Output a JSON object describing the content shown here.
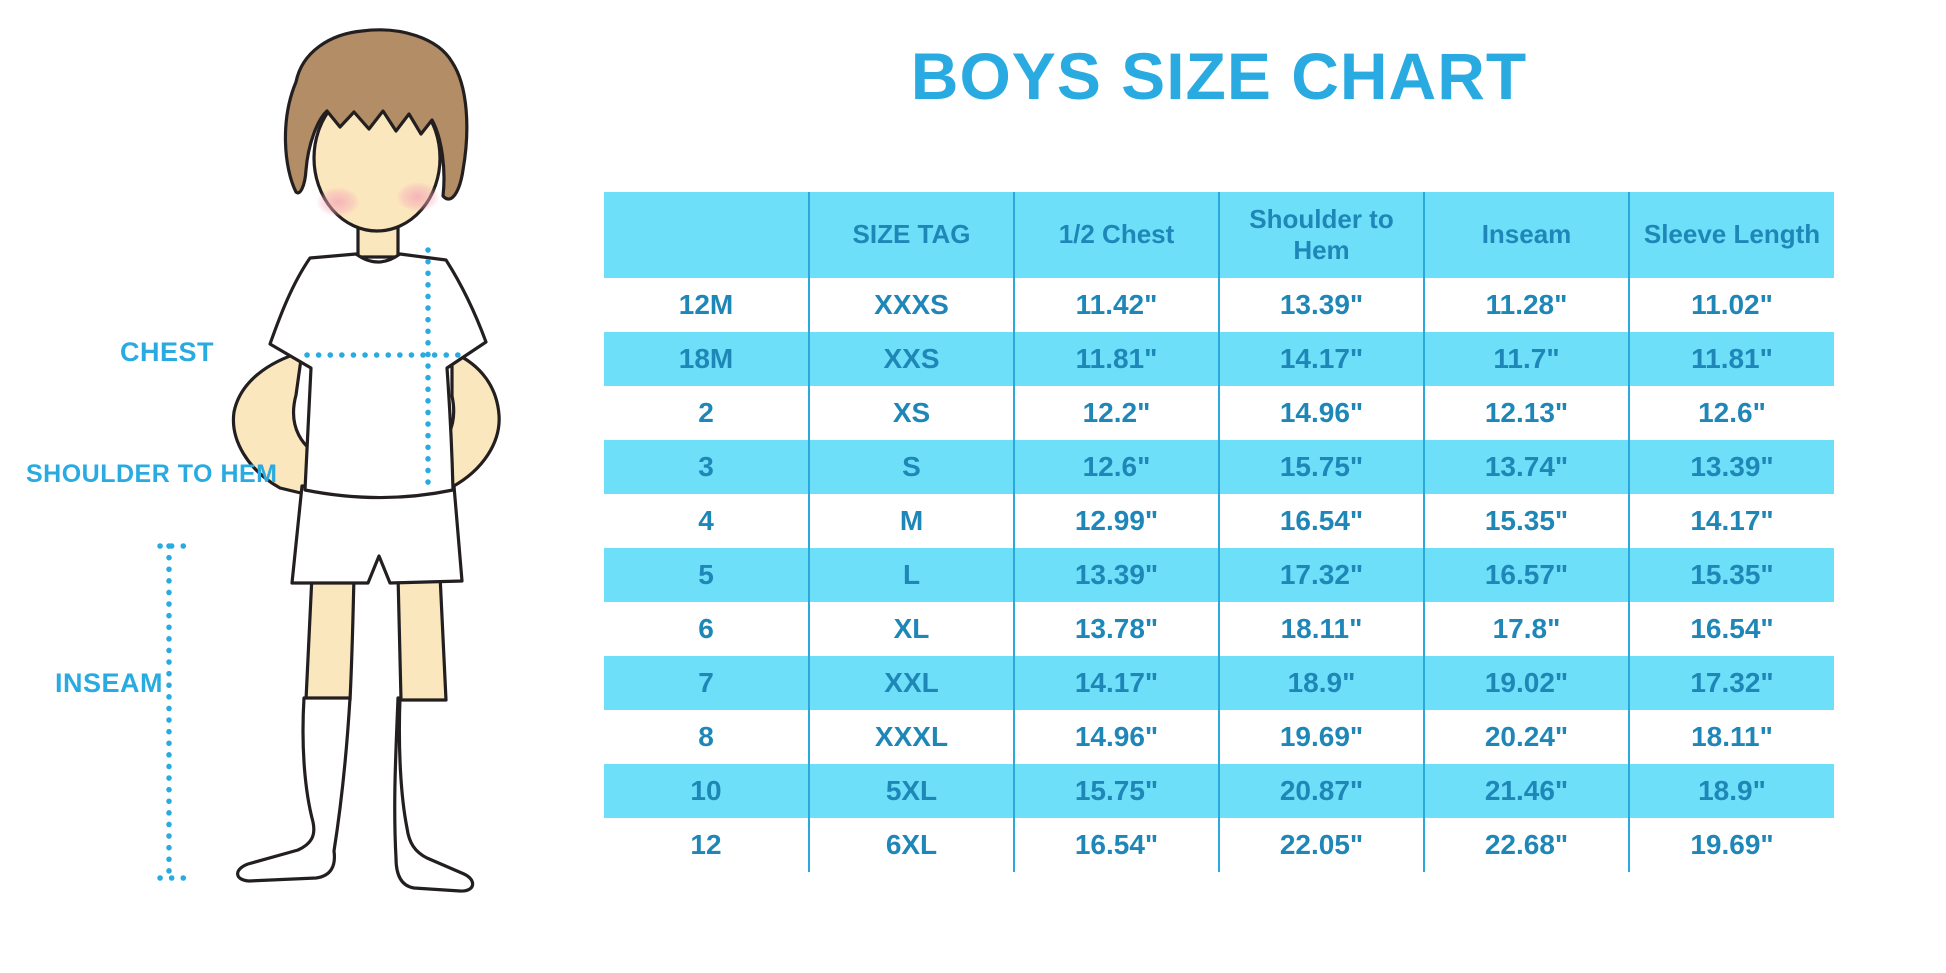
{
  "chart_data": {
    "type": "table",
    "title": "BOYS SIZE CHART",
    "units": "inches",
    "columns": [
      "",
      "SIZE TAG",
      "1/2 Chest",
      "Shoulder to Hem",
      "Inseam",
      "Sleeve Length"
    ],
    "rows": [
      [
        "12M",
        "XXXS",
        "11.42\"",
        "13.39\"",
        "11.28\"",
        "11.02\""
      ],
      [
        "18M",
        "XXS",
        "11.81\"",
        "14.17\"",
        "11.7\"",
        "11.81\""
      ],
      [
        "2",
        "XS",
        "12.2\"",
        "14.96\"",
        "12.13\"",
        "12.6\""
      ],
      [
        "3",
        "S",
        "12.6\"",
        "15.75\"",
        "13.74\"",
        "13.39\""
      ],
      [
        "4",
        "M",
        "12.99\"",
        "16.54\"",
        "15.35\"",
        "14.17\""
      ],
      [
        "5",
        "L",
        "13.39\"",
        "17.32\"",
        "16.57\"",
        "15.35\""
      ],
      [
        "6",
        "XL",
        "13.78\"",
        "18.11\"",
        "17.8\"",
        "16.54\""
      ],
      [
        "7",
        "XXL",
        "14.17\"",
        "18.9\"",
        "19.02\"",
        "17.32\""
      ],
      [
        "8",
        "XXXL",
        "14.96\"",
        "19.69\"",
        "20.24\"",
        "18.11\""
      ],
      [
        "10",
        "5XL",
        "15.75\"",
        "20.87\"",
        "21.46\"",
        "18.9\""
      ],
      [
        "12",
        "6XL",
        "16.54\"",
        "22.05\"",
        "22.68\"",
        "19.69\""
      ]
    ],
    "row_shading": "header and alternate rows light blue, others white",
    "legend_position": "none",
    "grid": "vertical column separators only"
  },
  "figure": {
    "labels": {
      "chest": "CHEST",
      "shoulder_to_hem": "SHOULDER TO HEM",
      "inseam": "INSEAM"
    }
  },
  "colors": {
    "accent_blue": "#29ABE2",
    "table_fill_blue": "#6EDFF8",
    "table_text_blue": "#1E87B8",
    "table_line_blue": "#2BA9DC",
    "skin": "#FBE7BE",
    "hair_brown": "#B28D66",
    "cheek_pink": "#F5A8B8",
    "outline_black": "#231F20"
  }
}
